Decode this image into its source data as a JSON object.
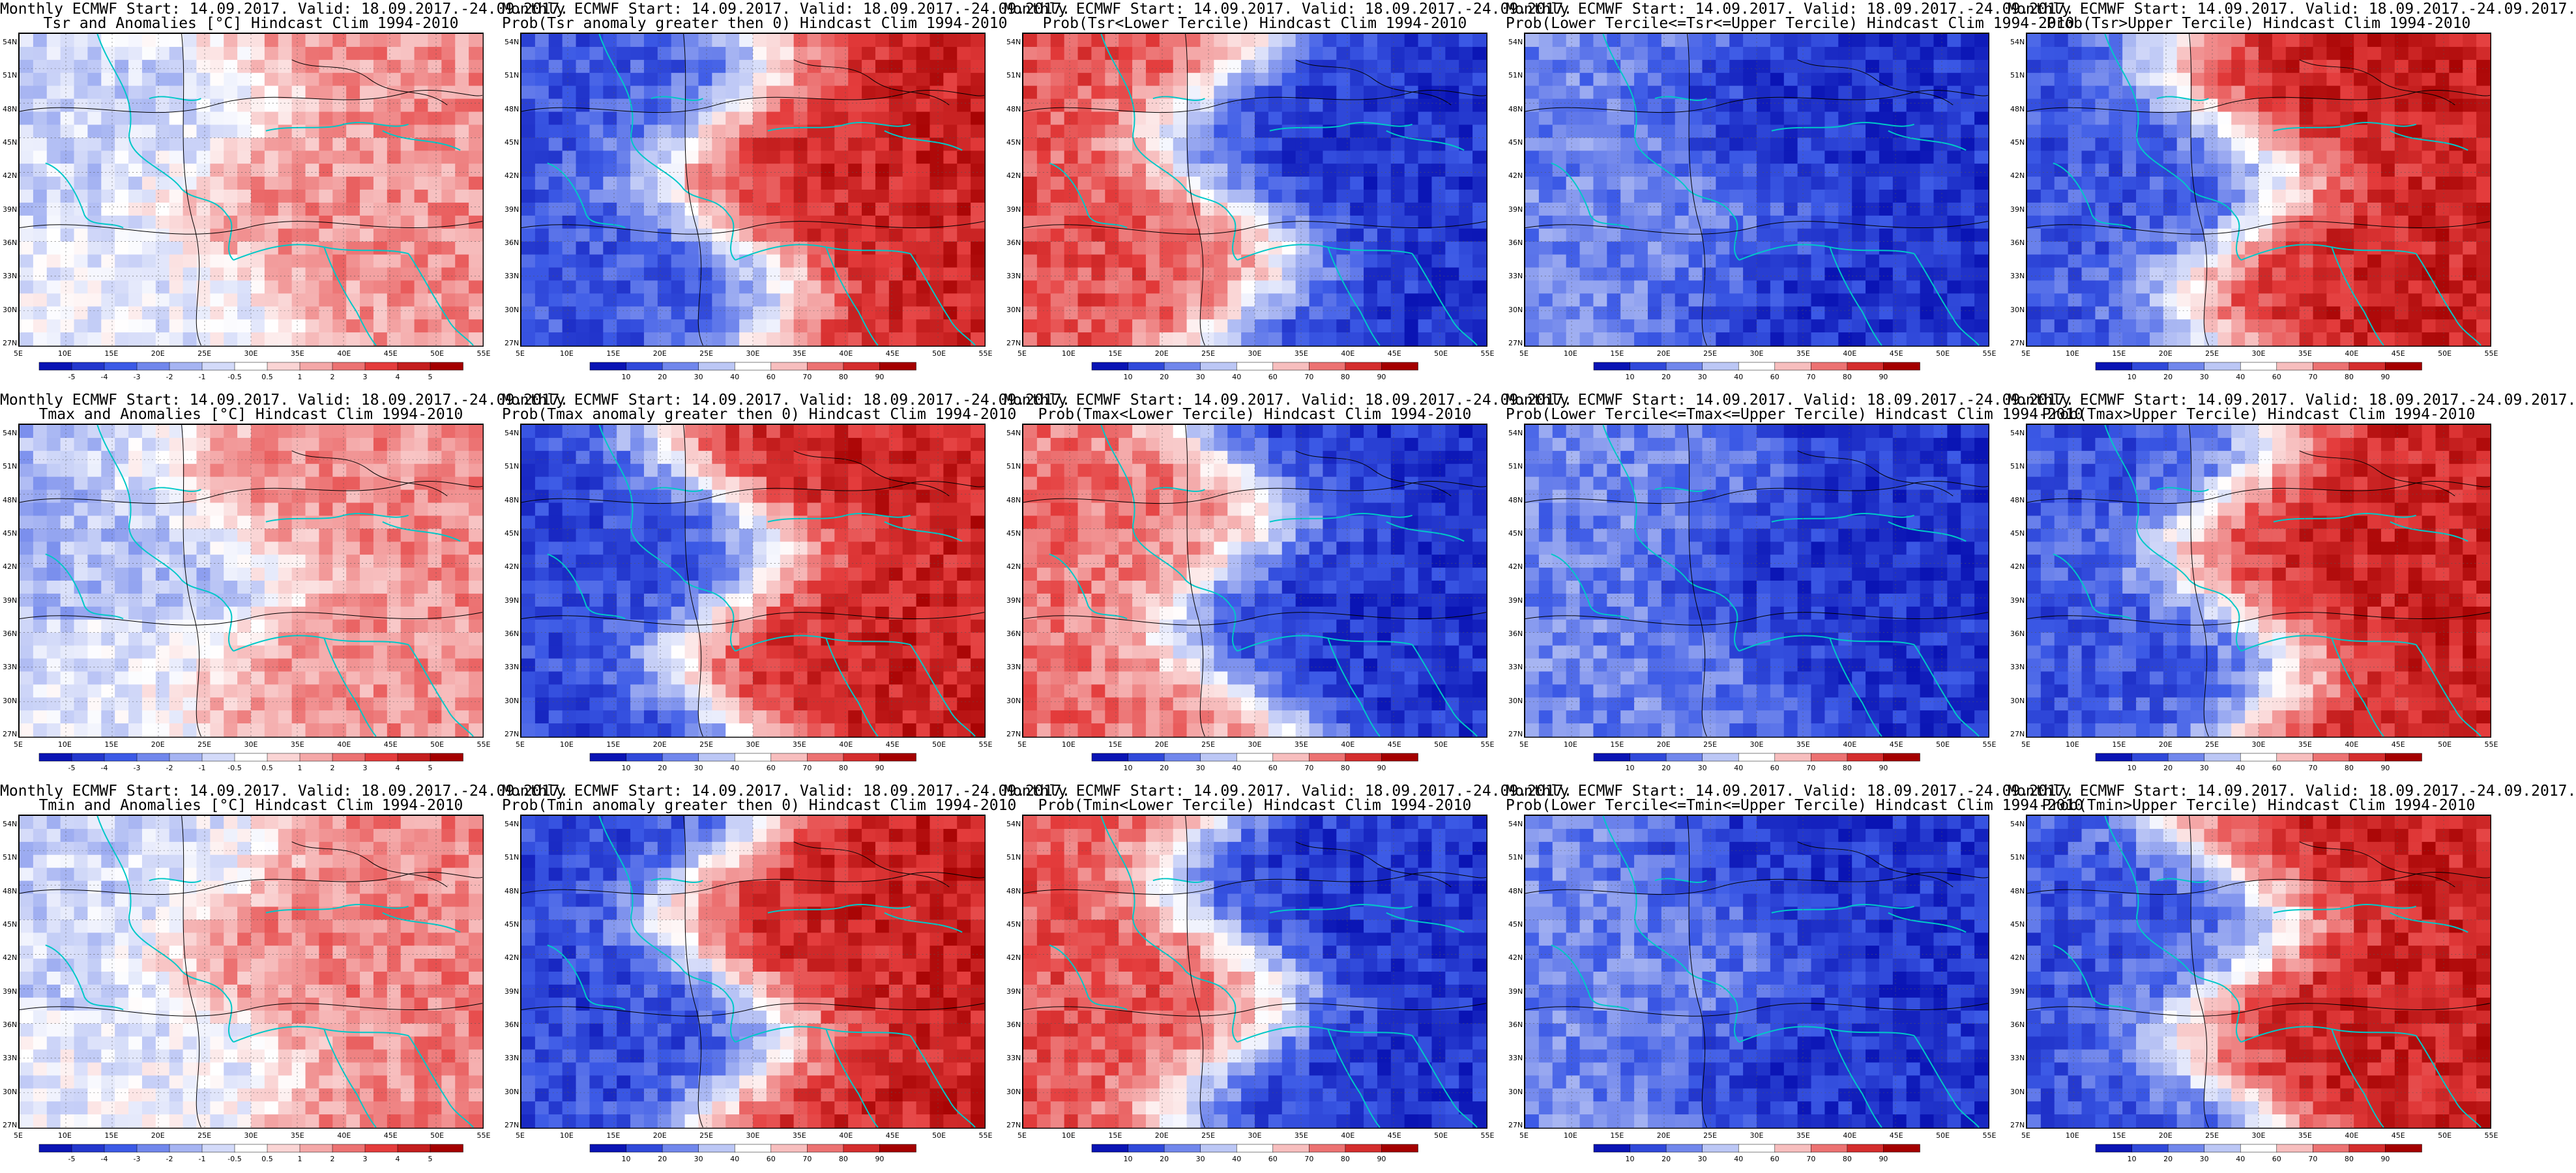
{
  "colors": {
    "blue_dark": "#0a14b4",
    "blue_mid": "#3c5ae6",
    "blue_light": "#a6b4f2",
    "white": "#ffffff",
    "red_light": "#f4a8a8",
    "red_mid": "#e43c3c",
    "red_dark": "#a40000",
    "coast": "#00c8c8",
    "contour": "#000000"
  },
  "lat_labels": [
    "54N",
    "51N",
    "48N",
    "45N",
    "42N",
    "39N",
    "36N",
    "33N",
    "30N",
    "27N"
  ],
  "lon_labels": [
    "5E",
    "10E",
    "15E",
    "20E",
    "25E",
    "30E",
    "35E",
    "40E",
    "45E",
    "50E",
    "55E"
  ],
  "anom_ticks": [
    "-5",
    "-4",
    "-3",
    "-2",
    "-1",
    "-0.5",
    "0.5",
    "1",
    "2",
    "3",
    "4",
    "5"
  ],
  "prob_ticks": [
    "10",
    "20",
    "30",
    "40",
    "60",
    "70",
    "80",
    "90"
  ],
  "rows": [
    {
      "panels": [
        {
          "line1": "Monthly ECMWF Start: 14.09.2017. Valid: 18.09.2017.-24.09.2017.",
          "line2": "Tsr and Anomalies [°C] Hindcast Clim 1994-2010",
          "scale": "anomaly",
          "level_east": 0.7,
          "level_west": 0.4
        },
        {
          "line1": "Monthly ECMWF Start: 14.09.2017. Valid: 18.09.2017.-24.09.2017.",
          "line2": "Prob(Tsr anomaly greater then 0) Hindcast Clim 1994-2010",
          "scale": "prob",
          "level_east": 0.9,
          "level_west": 0.15
        },
        {
          "line1": "Monthly ECMWF Start: 14.09.2017. Valid: 18.09.2017.-24.09.2017.",
          "line2": "Prob(Tsr<Lower Tercile) Hindcast Clim 1994-2010",
          "scale": "prob",
          "level_east": 0.08,
          "level_west": 0.8
        },
        {
          "line1": "Monthly ECMWF Start: 14.09.2017. Valid: 18.09.2017.-24.09.2017.",
          "line2": "Prob(Lower Tercile<=Tsr<=Upper Tercile) Hindcast Clim 1994-2010",
          "scale": "prob",
          "level_east": 0.08,
          "level_west": 0.25
        },
        {
          "line1": "Monthly ECMWF Start: 14.09.2017. Valid: 18.09.2017.-24.09.2017.",
          "line2": "Prob(Tsr>Upper Tercile) Hindcast Clim 1994-2010",
          "scale": "prob",
          "level_east": 0.9,
          "level_west": 0.15
        }
      ]
    },
    {
      "panels": [
        {
          "line1": "Monthly ECMWF Start: 14.09.2017. Valid: 18.09.2017.-24.09.2017.",
          "line2": "Tmax and Anomalies [°C] Hindcast Clim 1994-2010",
          "scale": "anomaly",
          "level_east": 0.7,
          "level_west": 0.35
        },
        {
          "line1": "Monthly ECMWF Start: 14.09.2017. Valid: 18.09.2017.-24.09.2017.",
          "line2": "Prob(Tmax anomaly greater then 0) Hindcast Clim 1994-2010",
          "scale": "prob",
          "level_east": 0.9,
          "level_west": 0.12
        },
        {
          "line1": "Monthly ECMWF Start: 14.09.2017. Valid: 18.09.2017.-24.09.2017.",
          "line2": "Prob(Tmax<Lower Tercile) Hindcast Clim 1994-2010",
          "scale": "prob",
          "level_east": 0.08,
          "level_west": 0.75
        },
        {
          "line1": "Monthly ECMWF Start: 14.09.2017. Valid: 18.09.2017.-24.09.2017.",
          "line2": "Prob(Lower Tercile<=Tmax<=Upper Tercile) Hindcast Clim 1994-2010",
          "scale": "prob",
          "level_east": 0.08,
          "level_west": 0.25
        },
        {
          "line1": "Monthly ECMWF Start: 14.09.2017. Valid: 18.09.2017.-24.09.2017.",
          "line2": "Prob(Tmax>Upper Tercile) Hindcast Clim 1994-2010",
          "scale": "prob",
          "level_east": 0.9,
          "level_west": 0.15
        }
      ]
    },
    {
      "panels": [
        {
          "line1": "Monthly ECMWF Start: 14.09.2017. Valid: 18.09.2017.-24.09.2017.",
          "line2": "Tmin and Anomalies [°C] Hindcast Clim 1994-2010",
          "scale": "anomaly",
          "level_east": 0.72,
          "level_west": 0.4
        },
        {
          "line1": "Monthly ECMWF Start: 14.09.2017. Valid: 18.09.2017.-24.09.2017.",
          "line2": "Prob(Tmin anomaly greater then 0) Hindcast Clim 1994-2010",
          "scale": "prob",
          "level_east": 0.9,
          "level_west": 0.12
        },
        {
          "line1": "Monthly ECMWF Start: 14.09.2017. Valid: 18.09.2017.-24.09.2017.",
          "line2": "Prob(Tmin<Lower Tercile) Hindcast Clim 1994-2010",
          "scale": "prob",
          "level_east": 0.08,
          "level_west": 0.8
        },
        {
          "line1": "Monthly ECMWF Start: 14.09.2017. Valid: 18.09.2017.-24.09.2017.",
          "line2": "Prob(Lower Tercile<=Tmin<=Upper Tercile) Hindcast Clim 1994-2010",
          "scale": "prob",
          "level_east": 0.08,
          "level_west": 0.25
        },
        {
          "line1": "Monthly ECMWF Start: 14.09.2017. Valid: 18.09.2017.-24.09.2017.",
          "line2": "Prob(Tmin>Upper Tercile) Hindcast Clim 1994-2010",
          "scale": "prob",
          "level_east": 0.9,
          "level_west": 0.15
        }
      ]
    }
  ]
}
